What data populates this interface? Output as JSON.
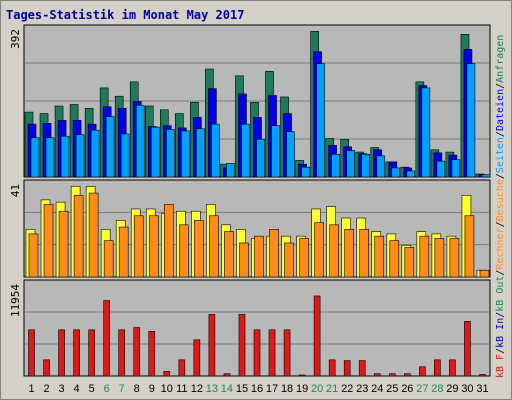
{
  "title": "Tages-Statistik im Monat May 2017",
  "chart_data": [
    {
      "type": "bar",
      "panel": "top",
      "ymax_label": "392",
      "ylim": [
        0,
        392
      ],
      "grid": true,
      "categories": [
        "1",
        "2",
        "3",
        "4",
        "5",
        "6",
        "7",
        "8",
        "9",
        "10",
        "11",
        "12",
        "13",
        "14",
        "15",
        "16",
        "17",
        "18",
        "19",
        "20",
        "21",
        "22",
        "23",
        "24",
        "25",
        "26",
        "27",
        "28",
        "29",
        "30",
        "31"
      ],
      "series": [
        {
          "name": "Anfragen",
          "color": "#1e7a5e",
          "values": [
            172,
            168,
            188,
            192,
            182,
            236,
            214,
            252,
            188,
            178,
            168,
            198,
            286,
            34,
            268,
            198,
            280,
            212,
            44,
            386,
            102,
            100,
            66,
            78,
            40,
            26,
            252,
            72,
            66,
            378,
            8
          ]
        },
        {
          "name": "Dateien",
          "color": "#0000e6",
          "values": [
            140,
            142,
            150,
            150,
            140,
            186,
            182,
            200,
            134,
            136,
            130,
            158,
            234,
            24,
            220,
            158,
            216,
            168,
            34,
            332,
            84,
            80,
            62,
            72,
            40,
            24,
            242,
            64,
            58,
            338,
            6
          ]
        },
        {
          "name": "Besuche",
          "color": "#00a0ff",
          "values": [
            104,
            104,
            108,
            112,
            124,
            160,
            114,
            190,
            132,
            126,
            122,
            128,
            140,
            36,
            140,
            100,
            136,
            120,
            26,
            300,
            60,
            70,
            60,
            56,
            24,
            16,
            236,
            42,
            46,
            300,
            6
          ]
        }
      ]
    },
    {
      "type": "bar",
      "panel": "middle",
      "ymax_label": "41",
      "ylim": [
        0,
        41
      ],
      "grid": true,
      "categories": [
        "1",
        "2",
        "3",
        "4",
        "5",
        "6",
        "7",
        "8",
        "9",
        "10",
        "11",
        "12",
        "13",
        "14",
        "15",
        "16",
        "17",
        "18",
        "19",
        "20",
        "21",
        "22",
        "23",
        "24",
        "25",
        "26",
        "27",
        "28",
        "29",
        "30",
        "31"
      ],
      "series": [
        {
          "name": "Rechner",
          "color": "#ffff33",
          "values": [
            21,
            34,
            33,
            40,
            40,
            21,
            25,
            30,
            30,
            28,
            29,
            29,
            32,
            23,
            21,
            17,
            18,
            18,
            18,
            30,
            31,
            26,
            26,
            20,
            19,
            14,
            20,
            19,
            18,
            36,
            3
          ]
        },
        {
          "name": "Besuche",
          "color": "#ff8c1a",
          "values": [
            19,
            32,
            29,
            36,
            37,
            16,
            22,
            27,
            27,
            32,
            23,
            25,
            27,
            20,
            15,
            18,
            21,
            15,
            17,
            24,
            23,
            21,
            21,
            18,
            16,
            13,
            18,
            17,
            17,
            27,
            3
          ]
        }
      ]
    },
    {
      "type": "bar",
      "panel": "bottom",
      "ymax_label": "11954",
      "ylim": [
        0,
        11954
      ],
      "grid": true,
      "categories": [
        "1",
        "2",
        "3",
        "4",
        "5",
        "6",
        "7",
        "8",
        "9",
        "10",
        "11",
        "12",
        "13",
        "14",
        "15",
        "16",
        "17",
        "18",
        "19",
        "20",
        "21",
        "22",
        "23",
        "24",
        "25",
        "26",
        "27",
        "28",
        "29",
        "30",
        "31"
      ],
      "series": [
        {
          "name": "kB F",
          "color": "#e01818",
          "values": [
            6000,
            2100,
            6000,
            6000,
            6000,
            9800,
            6000,
            6300,
            5800,
            600,
            2100,
            4700,
            8000,
            300,
            8000,
            6000,
            6000,
            6000,
            100,
            10400,
            2100,
            2000,
            2000,
            300,
            300,
            300,
            1200,
            2100,
            2100,
            7100,
            200
          ]
        }
      ]
    }
  ],
  "side_legend": [
    {
      "text": "kB F",
      "color": "#e01818"
    },
    {
      "text": "/",
      "color": "#000000"
    },
    {
      "text": "kB In",
      "color": "#0000c0"
    },
    {
      "text": "/",
      "color": "#000000"
    },
    {
      "text": "kB Out",
      "color": "#1f8a5a"
    },
    {
      "text": "/",
      "color": "#000000"
    },
    {
      "text": "Rechner",
      "color": "#ff8c1a"
    },
    {
      "text": "/",
      "color": "#000000"
    },
    {
      "text": "Besuche",
      "color": "#ff8c1a"
    },
    {
      "text": "/",
      "color": "#000000"
    },
    {
      "text": "Seiten",
      "color": "#00a0ff"
    },
    {
      "text": "/",
      "color": "#000000"
    },
    {
      "text": "Dateien",
      "color": "#0000e6"
    },
    {
      "text": "/",
      "color": "#000000"
    },
    {
      "text": "Anfragen",
      "color": "#1e7a5e"
    }
  ],
  "weekend_days": [
    "6",
    "7",
    "13",
    "14",
    "20",
    "21",
    "27",
    "28"
  ]
}
